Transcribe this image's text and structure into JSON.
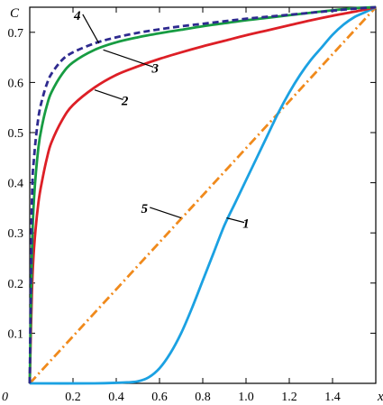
{
  "chart_data": {
    "type": "line",
    "title": "",
    "xlabel": "x",
    "ylabel": "C",
    "xlim": [
      0,
      1.6
    ],
    "ylim": [
      0,
      0.75
    ],
    "origin_label": "0",
    "x_ticks": [
      {
        "value": 0.2,
        "label": "0.2"
      },
      {
        "value": 0.4,
        "label": "0.4"
      },
      {
        "value": 0.6,
        "label": "0.6"
      },
      {
        "value": 0.8,
        "label": "0.8"
      },
      {
        "value": 1.0,
        "label": "1.0"
      },
      {
        "value": 1.2,
        "label": "1.2"
      },
      {
        "value": 1.4,
        "label": "1.4"
      }
    ],
    "y_ticks": [
      {
        "value": 0.1,
        "label": "0.1"
      },
      {
        "value": 0.2,
        "label": "0.2"
      },
      {
        "value": 0.3,
        "label": "0.3"
      },
      {
        "value": 0.4,
        "label": "0.4"
      },
      {
        "value": 0.5,
        "label": "0.5"
      },
      {
        "value": 0.6,
        "label": "0.6"
      },
      {
        "value": 0.7,
        "label": "0.7"
      }
    ],
    "grid": false,
    "series": [
      {
        "label": "1",
        "color": "#1ba1e2",
        "style": "solid",
        "x": [
          0,
          0.3,
          0.45,
          0.5,
          0.55,
          0.6,
          0.65,
          0.7,
          0.75,
          0.8,
          0.85,
          0.9,
          0.95,
          1.0,
          1.05,
          1.1,
          1.15,
          1.2,
          1.25,
          1.3,
          1.35,
          1.4,
          1.45,
          1.5,
          1.55,
          1.6
        ],
        "y": [
          0,
          0.0,
          0.002,
          0.004,
          0.012,
          0.03,
          0.06,
          0.1,
          0.15,
          0.205,
          0.26,
          0.315,
          0.36,
          0.405,
          0.45,
          0.495,
          0.54,
          0.58,
          0.615,
          0.645,
          0.67,
          0.695,
          0.715,
          0.73,
          0.74,
          0.75
        ],
        "label_at": {
          "x": 1.0,
          "y": 0.31
        },
        "leader_to": {
          "x": 0.91,
          "y": 0.33
        }
      },
      {
        "label": "2",
        "color": "#dd1f26",
        "style": "solid",
        "x": [
          0,
          0.01,
          0.02,
          0.04,
          0.06,
          0.08,
          0.1,
          0.15,
          0.2,
          0.3,
          0.4,
          0.5,
          0.6,
          0.7,
          0.8,
          0.9,
          1.0,
          1.1,
          1.2,
          1.3,
          1.4,
          1.5,
          1.6
        ],
        "y": [
          0,
          0.18,
          0.27,
          0.36,
          0.41,
          0.45,
          0.48,
          0.525,
          0.555,
          0.59,
          0.615,
          0.632,
          0.647,
          0.66,
          0.672,
          0.683,
          0.694,
          0.704,
          0.714,
          0.724,
          0.733,
          0.741,
          0.75
        ],
        "label_at": {
          "x": 0.44,
          "y": 0.555
        },
        "leader_to": {
          "x": 0.3,
          "y": 0.585
        }
      },
      {
        "label": "3",
        "color": "#179c42",
        "style": "solid",
        "x": [
          0,
          0.01,
          0.02,
          0.04,
          0.06,
          0.08,
          0.1,
          0.15,
          0.2,
          0.3,
          0.4,
          0.5,
          0.6,
          0.7,
          0.8,
          0.9,
          1.0,
          1.1,
          1.2,
          1.3,
          1.4,
          1.5,
          1.6
        ],
        "y": [
          0,
          0.26,
          0.37,
          0.47,
          0.52,
          0.555,
          0.58,
          0.617,
          0.64,
          0.665,
          0.68,
          0.69,
          0.698,
          0.705,
          0.712,
          0.718,
          0.724,
          0.729,
          0.734,
          0.739,
          0.744,
          0.748,
          0.75
        ],
        "label_at": {
          "x": 0.58,
          "y": 0.62
        },
        "leader_to": {
          "x": 0.34,
          "y": 0.665
        }
      },
      {
        "label": "4",
        "color": "#2e2a8f",
        "style": "dashed",
        "x": [
          0,
          0.01,
          0.02,
          0.04,
          0.06,
          0.08,
          0.1,
          0.15,
          0.2,
          0.3,
          0.4,
          0.5,
          0.6,
          0.7,
          0.8,
          0.9,
          1.0,
          1.1,
          1.2,
          1.3,
          1.4,
          1.5,
          1.6
        ],
        "y": [
          0,
          0.36,
          0.45,
          0.53,
          0.57,
          0.598,
          0.617,
          0.645,
          0.66,
          0.678,
          0.69,
          0.699,
          0.706,
          0.712,
          0.717,
          0.722,
          0.727,
          0.731,
          0.735,
          0.739,
          0.743,
          0.747,
          0.75
        ],
        "label_at": {
          "x": 0.22,
          "y": 0.725
        },
        "leader_to": {
          "x": 0.32,
          "y": 0.678
        }
      },
      {
        "label": "5",
        "color": "#f08a1c",
        "style": "dashdot",
        "x": [
          0,
          1.6
        ],
        "y": [
          0,
          0.75
        ],
        "label_at": {
          "x": 0.53,
          "y": 0.34
        },
        "leader_to": {
          "x": 0.7,
          "y": 0.33
        }
      }
    ]
  }
}
